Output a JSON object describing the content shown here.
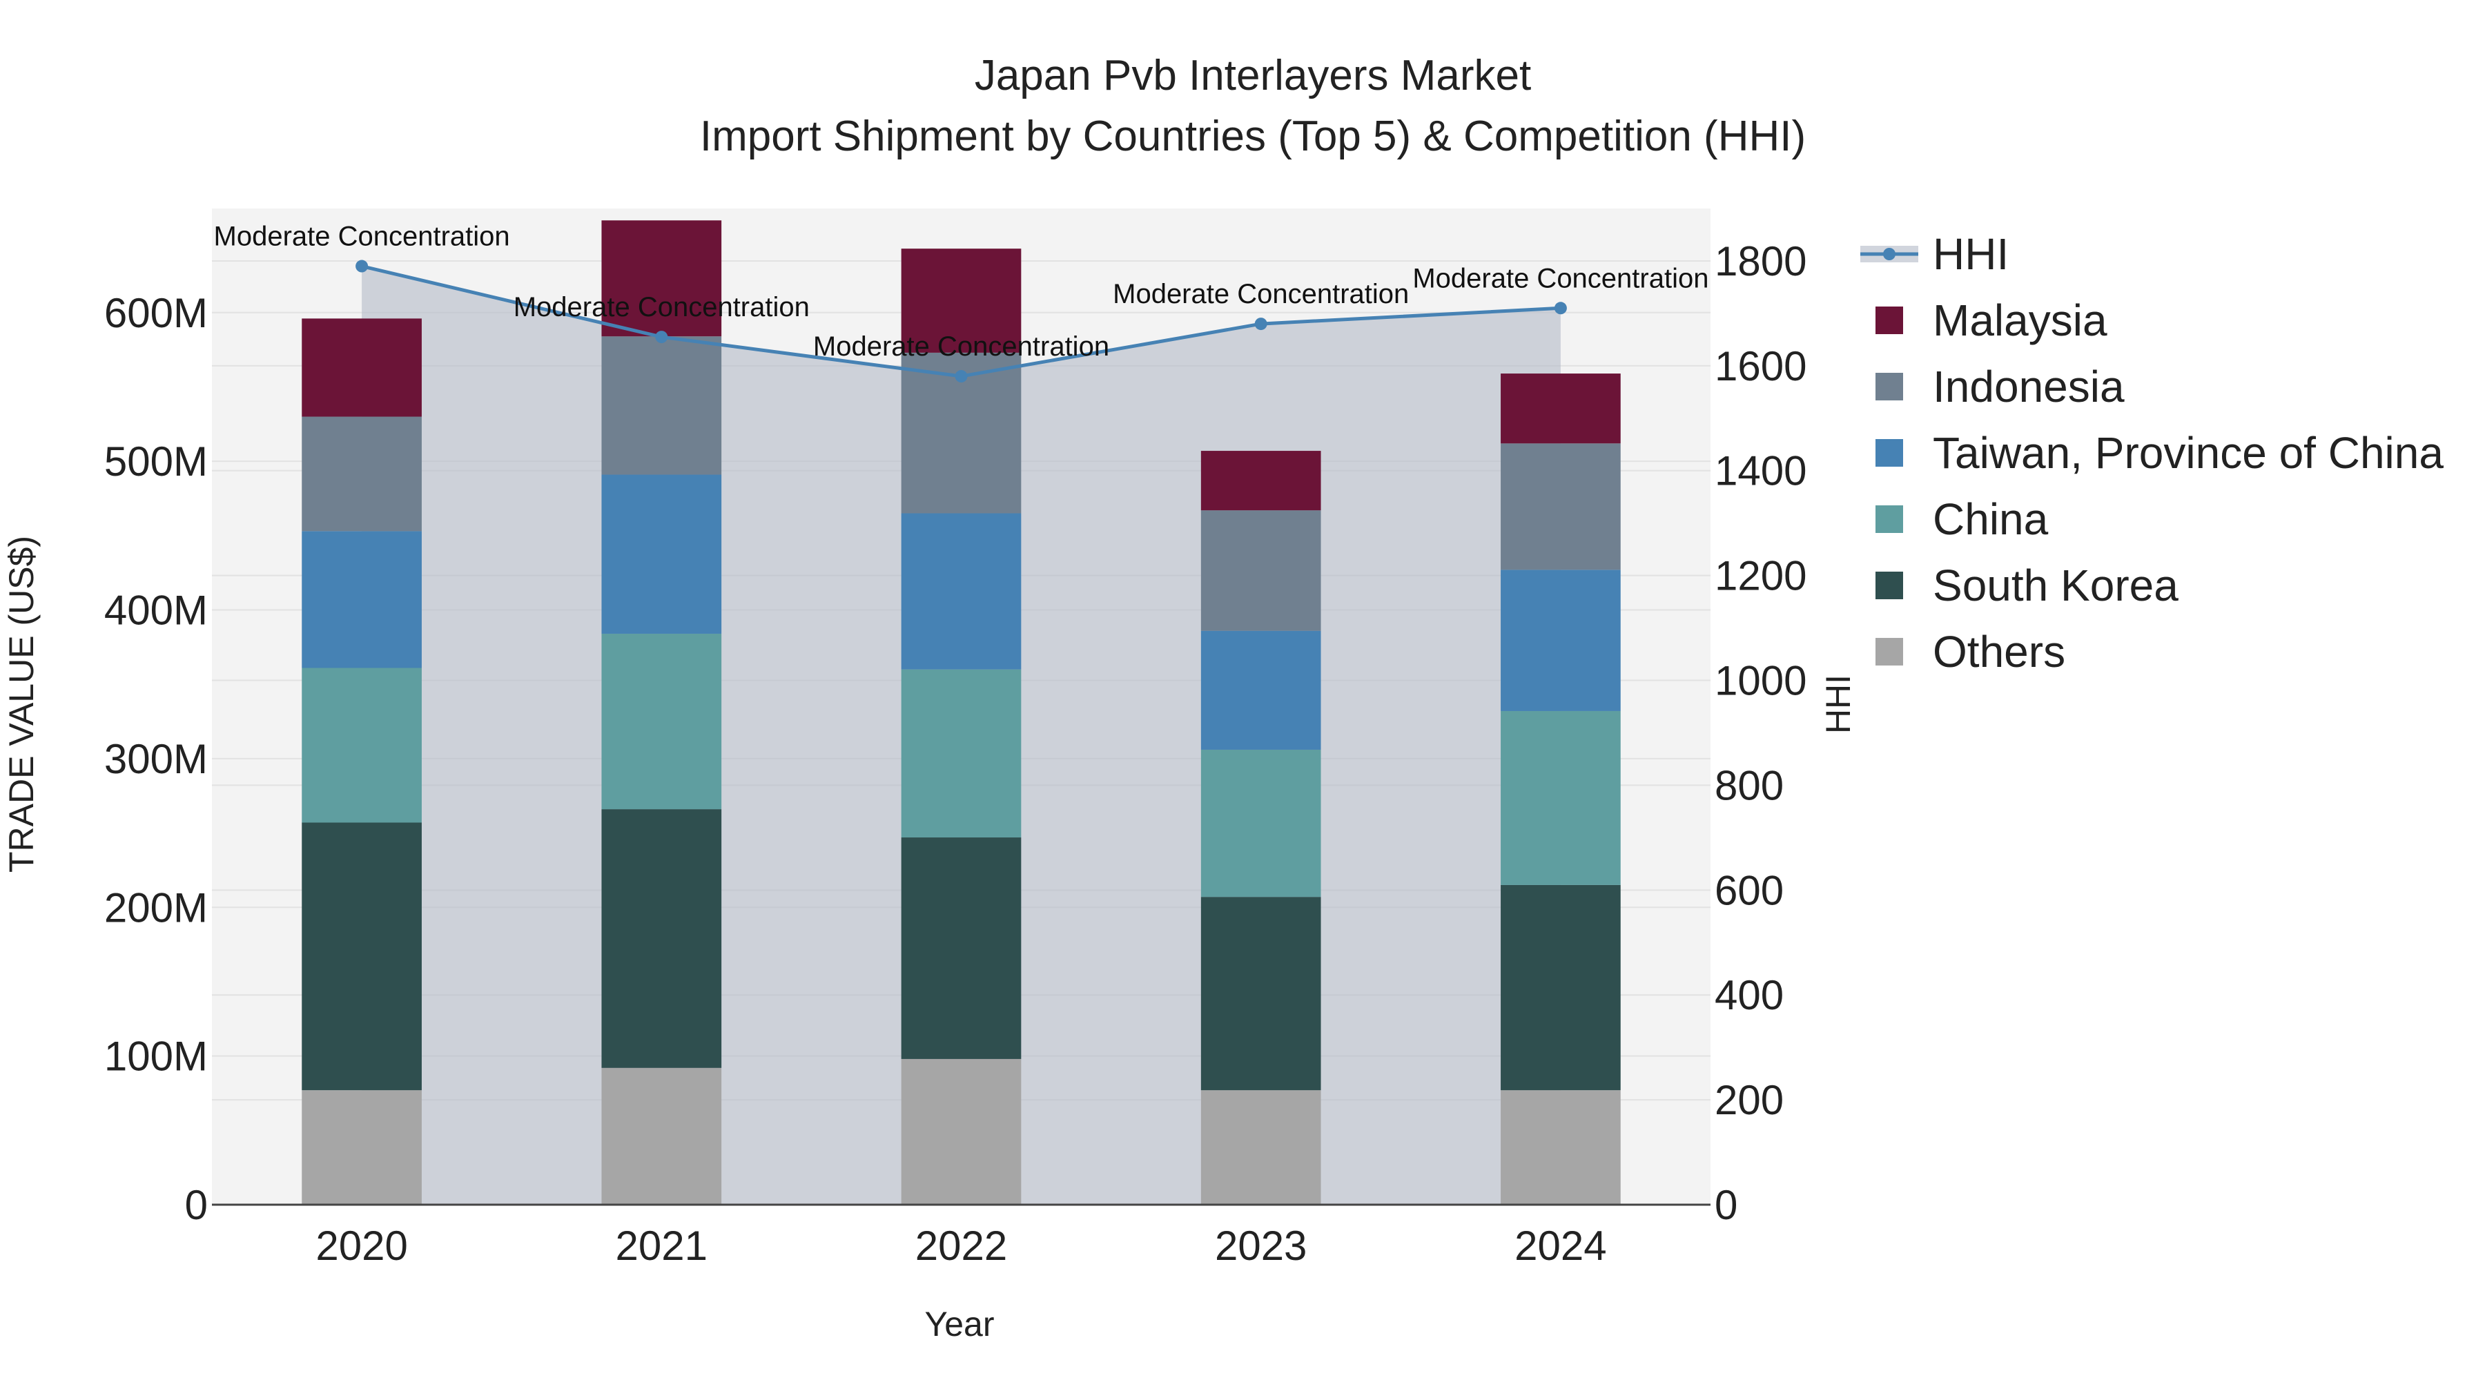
{
  "chart_data": {
    "type": "bar",
    "title_line1": "Japan Pvb Interlayers Market",
    "title_line2": "Import Shipment by Countries (Top 5) & Competition (HHI)",
    "xlabel": "Year",
    "ylabel": "TRADE VALUE (US$)",
    "y2label": "HHI",
    "categories": [
      "2020",
      "2021",
      "2022",
      "2023",
      "2024"
    ],
    "ylim": [
      0,
      670000000
    ],
    "y2lim": [
      0,
      1900
    ],
    "yticks": [
      {
        "value": 0,
        "label": "0"
      },
      {
        "value": 100000000,
        "label": "100M"
      },
      {
        "value": 200000000,
        "label": "200M"
      },
      {
        "value": 300000000,
        "label": "300M"
      },
      {
        "value": 400000000,
        "label": "400M"
      },
      {
        "value": 500000000,
        "label": "500M"
      },
      {
        "value": 600000000,
        "label": "600M"
      }
    ],
    "y2ticks": [
      {
        "value": 0,
        "label": "0"
      },
      {
        "value": 200,
        "label": "200"
      },
      {
        "value": 400,
        "label": "400"
      },
      {
        "value": 600,
        "label": "600"
      },
      {
        "value": 800,
        "label": "800"
      },
      {
        "value": 1000,
        "label": "1000"
      },
      {
        "value": 1200,
        "label": "1200"
      },
      {
        "value": 1400,
        "label": "1400"
      },
      {
        "value": 1600,
        "label": "1600"
      },
      {
        "value": 1800,
        "label": "1800"
      }
    ],
    "series": [
      {
        "name": "Others",
        "color": "#a6a6a6",
        "values": [
          77000000,
          92000000,
          98000000,
          77000000,
          77000000
        ]
      },
      {
        "name": "South Korea",
        "color": "#2f4f4f",
        "values": [
          180000000,
          174000000,
          149000000,
          130000000,
          138000000
        ]
      },
      {
        "name": "China",
        "color": "#5f9ea0",
        "values": [
          104000000,
          118000000,
          113000000,
          99000000,
          117000000
        ]
      },
      {
        "name": "Taiwan, Province of China",
        "color": "#4682b4",
        "values": [
          92000000,
          107000000,
          105000000,
          80000000,
          95000000
        ]
      },
      {
        "name": "Indonesia",
        "color": "#708090",
        "values": [
          77000000,
          93000000,
          108000000,
          81000000,
          85000000
        ]
      },
      {
        "name": "Malaysia",
        "color": "#6b1437",
        "values": [
          66000000,
          78000000,
          70000000,
          40000000,
          47000000
        ]
      }
    ],
    "hhi": {
      "name": "HHI",
      "color": "#4682b4",
      "values": [
        1790,
        1655,
        1580,
        1680,
        1710
      ],
      "annotations": [
        "Moderate Concentration",
        "Moderate Concentration",
        "Moderate Concentration",
        "Moderate Concentration",
        "Moderate Concentration"
      ]
    },
    "legend": [
      "HHI",
      "Malaysia",
      "Indonesia",
      "Taiwan, Province of China",
      "China",
      "South Korea",
      "Others"
    ]
  }
}
